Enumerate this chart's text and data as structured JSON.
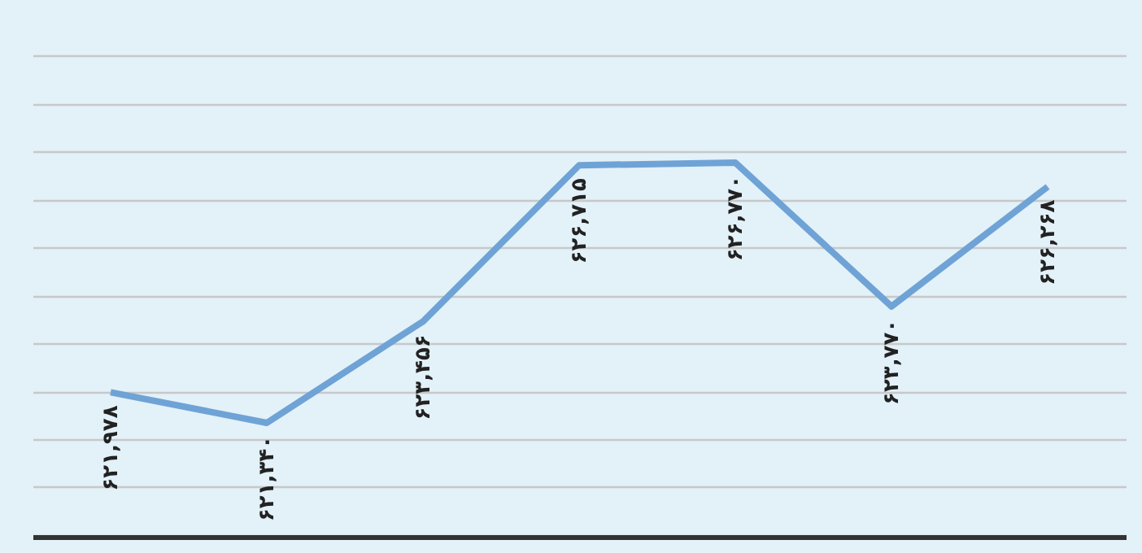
{
  "chart_data": {
    "type": "line",
    "categories": [
      null,
      null,
      null,
      null,
      null,
      null,
      null
    ],
    "series": [
      {
        "color": "#6fa3d6",
        "values": [
          621978,
          621340,
          623456,
          626715,
          626770,
          623770,
          626268
        ],
        "value_labels": [
          "۶۲۱,۹۷۸",
          "۶۲۱,۳۴۰",
          "۶۲۳,۴۵۶",
          "۶۲۶,۷۱۵",
          "۶۲۶,۷۷۰",
          "۶۲۳,۷۷۰",
          "۶۲۶,۲۶۸"
        ]
      }
    ],
    "grid": "y",
    "tick_labels": false,
    "marker": "none",
    "line_style": "solid"
  }
}
